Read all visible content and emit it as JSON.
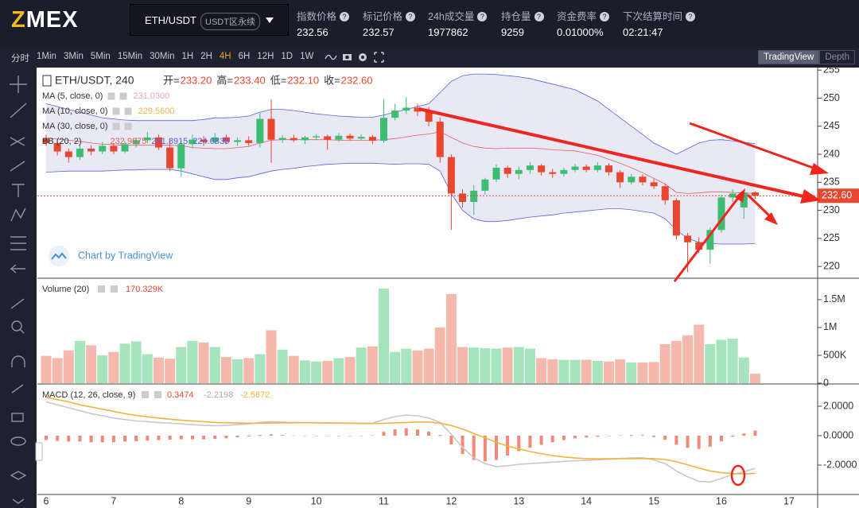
{
  "header": {
    "logo": {
      "accent": "Z",
      "rest": "MEX"
    },
    "symbol": "ETH/USDT",
    "market": "USDT区永续",
    "stats": [
      {
        "label": "指数价格",
        "value": "232.56"
      },
      {
        "label": "标记价格",
        "value": "232.57"
      },
      {
        "label": "24h成交量",
        "value": "1977862"
      },
      {
        "label": "持仓量",
        "value": "9259"
      },
      {
        "label": "资金费率",
        "value": "0.01000%"
      },
      {
        "label": "下次结算时间",
        "value": "02:21:47"
      }
    ]
  },
  "toolbar": {
    "intervals": [
      "分时",
      "1Min",
      "3Min",
      "5Min",
      "15Min",
      "30Min",
      "1H",
      "2H",
      "4H",
      "6H",
      "12H",
      "1D",
      "1W"
    ],
    "active": "4H",
    "views": [
      "TradingView",
      "Depth"
    ],
    "active_view": "TradingView"
  },
  "chart_data": [
    {
      "type": "candlestick",
      "title": "ETH/USDT, 240",
      "ohlc_prefixes": [
        "开=",
        "高=",
        "低=",
        "收="
      ],
      "ohlc_labels": [
        "233.20",
        "233.40",
        "232.10",
        "232.60"
      ],
      "last_label": "232.60",
      "watermark": "Chart by TradingView",
      "up_color": "#3dbd72",
      "down_color": "#e8472f",
      "ylim": [
        217.9,
        255.45
      ],
      "yticks": [
        220,
        225,
        230,
        235,
        240,
        245,
        250,
        255
      ],
      "indicators": [
        {
          "name": "MA (5, close, 0)",
          "value_label": "231.0300",
          "color": "#e6a3c8"
        },
        {
          "name": "MA (10, close, 0)",
          "value_label": "229.5600",
          "color": "#f0b35a"
        },
        {
          "name": "MA (30, close, 0)",
          "color": "#9fc4e8"
        }
      ],
      "bands": {
        "name": "BB (20, 2)",
        "fill": "#e3e3f3",
        "basis_color": "#e06060",
        "band_color": "#5a63e0",
        "upper": [
          249,
          248.5,
          248,
          247.5,
          247,
          246.5,
          246.3,
          246.1,
          246,
          246,
          246,
          246,
          246,
          246,
          246.2,
          246.5,
          246.5,
          246.6,
          246.8,
          247.5,
          248,
          248,
          247.8,
          247.5,
          247.2,
          247,
          246.8,
          246.7,
          246.6,
          246.6,
          247,
          247.5,
          248,
          248.5,
          249,
          251,
          253,
          254,
          254.3,
          254.3,
          254.2,
          254,
          253.8,
          253.5,
          253,
          252.5,
          252,
          251.5,
          250.5,
          249.5,
          248,
          246.5,
          245,
          243.5,
          242,
          241,
          240,
          241,
          242,
          242.5,
          242.6,
          242.4,
          242.1,
          241.8915
        ],
        "basis": [
          242.9,
          242.7,
          242.5,
          242.3,
          242,
          241.8,
          241.7,
          241.6,
          241.6,
          241.6,
          241.6,
          241.6,
          241.5,
          241.2,
          241.1,
          241,
          241,
          241.2,
          241.4,
          242,
          242.5,
          242.6,
          242.6,
          242.6,
          242.6,
          242.6,
          242.5,
          242.5,
          242.5,
          242.5,
          242.6,
          242.8,
          243.1,
          243.4,
          243.6,
          244,
          243,
          242,
          241.4,
          241.1,
          241,
          241.1,
          241.1,
          241.1,
          241,
          240.8,
          240.7,
          240.6,
          240.2,
          239.8,
          239.1,
          238.4,
          237.6,
          236.7,
          235.7,
          234.7,
          233.2,
          233,
          233.1,
          233.3,
          233.3,
          233.2,
          233.1,
          232.9875
        ],
        "lower": [
          236.8,
          236.9,
          237,
          237,
          237,
          237,
          237.1,
          237.2,
          237.2,
          237.3,
          237.3,
          237.3,
          237,
          236.5,
          236,
          235.5,
          235.5,
          235.8,
          236,
          236.5,
          237,
          237.3,
          237.5,
          237.8,
          238,
          238.2,
          238.3,
          238.4,
          238.4,
          238.4,
          238.3,
          238.2,
          238.3,
          238.3,
          238.2,
          237,
          233,
          230,
          228.5,
          228,
          228,
          228.2,
          228.5,
          228.8,
          229,
          229.2,
          229.5,
          229.7,
          229.9,
          230.1,
          230.3,
          230.3,
          230.1,
          229.8,
          229.5,
          228.5,
          226.5,
          225,
          224.3,
          224.1,
          224,
          224,
          224,
          224.0835
        ]
      },
      "candles": [
        [
          242.8,
          243.5,
          241.5,
          242.0
        ],
        [
          242.0,
          242.4,
          239.8,
          240.5
        ],
        [
          240.5,
          241,
          238.5,
          239.5
        ],
        [
          239.5,
          241.8,
          239,
          241.0
        ],
        [
          241.0,
          241.6,
          239.8,
          240.5
        ],
        [
          240.5,
          242.2,
          240,
          241.5
        ],
        [
          241.5,
          242,
          240,
          240.5
        ],
        [
          240.5,
          242.3,
          240.2,
          241.8
        ],
        [
          241.8,
          243,
          241.2,
          242.5
        ],
        [
          242.5,
          244,
          242,
          243.0
        ],
        [
          243.0,
          243.5,
          240.8,
          241.2
        ],
        [
          241.2,
          242.8,
          237,
          237.5
        ],
        [
          237.5,
          242.5,
          236,
          241.8
        ],
        [
          241.8,
          243.5,
          241,
          242.6
        ],
        [
          242.6,
          243.2,
          241.5,
          242.2
        ],
        [
          242.2,
          243.8,
          241.8,
          243.0
        ],
        [
          243.0,
          243.5,
          241.8,
          242.2
        ],
        [
          242.2,
          243,
          241.5,
          242.5
        ],
        [
          242.5,
          243.2,
          241.5,
          242.0
        ],
        [
          242.0,
          247.5,
          241.2,
          246.3
        ],
        [
          246.3,
          249.8,
          238.5,
          242.6
        ],
        [
          242.6,
          243.4,
          242,
          242.9
        ],
        [
          242.9,
          243.5,
          242.2,
          242.5
        ],
        [
          242.5,
          243.3,
          241.8,
          243.0
        ],
        [
          243.0,
          243.6,
          242.5,
          243.2
        ],
        [
          243.2,
          243.5,
          240.8,
          242.6
        ],
        [
          242.6,
          243.8,
          242.2,
          243.3
        ],
        [
          243.3,
          243.7,
          242.4,
          242.8
        ],
        [
          242.8,
          243.5,
          242.5,
          243.1
        ],
        [
          243.1,
          243.4,
          241.8,
          242.4
        ],
        [
          242.4,
          249.8,
          242,
          246.5
        ],
        [
          246.5,
          249,
          246,
          247.8
        ],
        [
          247.8,
          250.2,
          247.2,
          248.3
        ],
        [
          248.3,
          249,
          246.8,
          247.6
        ],
        [
          247.6,
          248.4,
          245,
          245.8
        ],
        [
          245.8,
          246.5,
          238.5,
          239.5
        ],
        [
          239.5,
          240,
          226.5,
          233.0
        ],
        [
          233.0,
          233.8,
          230.5,
          231.5
        ],
        [
          231.5,
          234.5,
          229.2,
          233.5
        ],
        [
          233.5,
          235.8,
          232.8,
          235.5
        ],
        [
          235.5,
          238.2,
          235,
          237.6
        ],
        [
          237.6,
          238,
          235.8,
          236.5
        ],
        [
          236.5,
          237.8,
          235.5,
          237.2
        ],
        [
          237.2,
          238.6,
          236.5,
          238.0
        ],
        [
          238.0,
          238.3,
          236.2,
          236.8
        ],
        [
          236.8,
          237.4,
          235.8,
          236.5
        ],
        [
          236.5,
          237.6,
          236,
          237.2
        ],
        [
          237.2,
          238.3,
          236.8,
          237.8
        ],
        [
          237.8,
          238.2,
          236.8,
          237.2
        ],
        [
          237.2,
          238.6,
          236.8,
          238.0
        ],
        [
          238.0,
          238.4,
          236.2,
          236.8
        ],
        [
          236.8,
          237.2,
          234,
          235.0
        ],
        [
          235.0,
          236.5,
          234.6,
          236.0
        ],
        [
          236.0,
          236.4,
          234.5,
          235.0
        ],
        [
          235.0,
          235.6,
          233.8,
          234.3
        ],
        [
          234.3,
          234.8,
          231,
          231.8
        ],
        [
          231.8,
          232.2,
          224.8,
          225.5
        ],
        [
          225.5,
          226,
          219,
          224.3
        ],
        [
          224.3,
          225.2,
          222.4,
          223.0
        ],
        [
          223.0,
          227,
          220.5,
          226.5
        ],
        [
          226.5,
          232.8,
          226,
          232.3
        ],
        [
          232.3,
          233.8,
          231.5,
          233.0
        ],
        [
          230.5,
          233.6,
          228.5,
          233.2
        ],
        [
          233.2,
          233.4,
          232.1,
          232.6
        ]
      ]
    },
    {
      "type": "bar",
      "title": "Volume (20)",
      "value_label": "170.329K",
      "up_color": "#a6e3bf",
      "down_color": "#f5b8ad",
      "ylim": [
        0,
        1870000
      ],
      "yticks": [
        {
          "value": 0,
          "label": "0"
        },
        {
          "value": 500000,
          "label": "500K"
        },
        {
          "value": 1000000,
          "label": "1M"
        },
        {
          "value": 1500000,
          "label": "1.5M"
        }
      ],
      "values": [
        490000,
        450000,
        590000,
        760000,
        680000,
        500000,
        560000,
        710000,
        750000,
        520000,
        460000,
        440000,
        650000,
        760000,
        730000,
        650000,
        470000,
        430000,
        450000,
        520000,
        950000,
        600000,
        490000,
        410000,
        390000,
        400000,
        450000,
        470000,
        640000,
        660000,
        1700000,
        560000,
        620000,
        590000,
        620000,
        1000000,
        1600000,
        650000,
        640000,
        630000,
        620000,
        640000,
        650000,
        620000,
        450000,
        430000,
        420000,
        420000,
        420000,
        400000,
        390000,
        430000,
        370000,
        370000,
        380000,
        700000,
        760000,
        860000,
        1050000,
        700000,
        780000,
        800000,
        460000,
        170329
      ]
    },
    {
      "type": "macd",
      "title": "MACD (12, 26, close, 9)",
      "ylim": [
        -4.0,
        3.46
      ],
      "yticks": [
        {
          "value": -2,
          "label": "-2.0000"
        },
        {
          "value": 0,
          "label": "0.0000"
        },
        {
          "value": 2,
          "label": "2.0000"
        }
      ],
      "series": [
        {
          "kind": "histogram",
          "color": "#f08a78",
          "values": [
            -0.3,
            -0.35,
            -0.4,
            -0.4,
            -0.45,
            -0.45,
            -0.45,
            -0.4,
            -0.38,
            -0.33,
            -0.3,
            -0.27,
            -0.25,
            -0.25,
            -0.25,
            -0.22,
            -0.18,
            -0.11,
            -0.05,
            0.05,
            0.09,
            0.05,
            0.02,
            0,
            -0.01,
            -0.01,
            -0.01,
            -0.01,
            -0.01,
            0.02,
            0.26,
            0.43,
            0.5,
            0.42,
            0.28,
            0.05,
            -0.6,
            -1.25,
            -1.65,
            -1.75,
            -1.65,
            -1.35,
            -1.05,
            -0.82,
            -0.63,
            -0.45,
            -0.3,
            -0.18,
            -0.12,
            -0.07,
            -0.02,
            0.02,
            0.04,
            0.05,
            -0.09,
            -0.28,
            -0.62,
            -0.82,
            -0.9,
            -0.75,
            -0.38,
            -0.07,
            0.15,
            0.3474
          ]
        },
        {
          "kind": "line",
          "color": "#c9c9c9",
          "values": [
            2.3,
            2.1,
            1.9,
            1.7,
            1.5,
            1.35,
            1.2,
            1.1,
            1.0,
            0.95,
            0.9,
            0.85,
            0.8,
            0.75,
            0.7,
            0.68,
            0.7,
            0.75,
            0.8,
            0.9,
            0.95,
            0.92,
            0.9,
            0.88,
            0.87,
            0.86,
            0.85,
            0.84,
            0.83,
            0.85,
            1.1,
            1.3,
            1.4,
            1.35,
            1.2,
            0.9,
            0.1,
            -0.8,
            -1.5,
            -1.9,
            -2.1,
            -2.05,
            -1.95,
            -1.9,
            -1.85,
            -1.8,
            -1.75,
            -1.7,
            -1.68,
            -1.65,
            -1.6,
            -1.55,
            -1.52,
            -1.5,
            -1.65,
            -1.9,
            -2.4,
            -2.8,
            -3.1,
            -3.15,
            -2.9,
            -2.65,
            -2.45,
            -2.2198
          ]
        },
        {
          "kind": "line",
          "color": "#f3b23c",
          "values": [
            2.6,
            2.45,
            2.3,
            2.1,
            1.95,
            1.8,
            1.65,
            1.5,
            1.38,
            1.28,
            1.2,
            1.12,
            1.05,
            1.0,
            0.95,
            0.9,
            0.88,
            0.86,
            0.85,
            0.85,
            0.86,
            0.87,
            0.88,
            0.88,
            0.88,
            0.87,
            0.86,
            0.85,
            0.84,
            0.83,
            0.84,
            0.87,
            0.9,
            0.93,
            0.92,
            0.85,
            0.7,
            0.45,
            0.15,
            -0.15,
            -0.45,
            -0.7,
            -0.9,
            -1.08,
            -1.22,
            -1.35,
            -1.45,
            -1.52,
            -1.56,
            -1.58,
            -1.58,
            -1.57,
            -1.56,
            -1.55,
            -1.56,
            -1.62,
            -1.78,
            -1.98,
            -2.2,
            -2.4,
            -2.52,
            -2.58,
            -2.6,
            -2.5672
          ]
        }
      ],
      "x_labels": [
        "6",
        "7",
        "8",
        "9",
        "10",
        "11",
        "12",
        "13",
        "14",
        "15",
        "16",
        "17"
      ]
    }
  ]
}
